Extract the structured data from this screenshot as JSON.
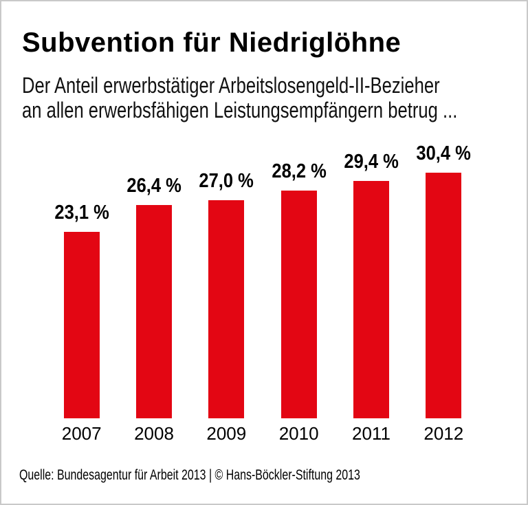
{
  "header": {
    "title": "Subvention für Niedriglöhne",
    "subtitle_line1": "Der Anteil erwerbstätiger Arbeitslosengeld-II-Bezieher",
    "subtitle_line2": "an allen erwerbsfähigen Leistungsempfängern betrug ..."
  },
  "footer": {
    "source": "Quelle: Bundesagentur für Arbeit 2013 | © Hans-Böckler-Stiftung 2013"
  },
  "colors": {
    "bar": "#e30613",
    "text": "#000000",
    "frame_border": "#c9c9c9"
  },
  "chart_data": {
    "type": "bar",
    "categories": [
      "2007",
      "2008",
      "2009",
      "2010",
      "2011",
      "2012"
    ],
    "values": [
      23.1,
      26.4,
      27.0,
      28.2,
      29.4,
      30.4
    ],
    "value_labels": [
      "23,1 %",
      "26,4 %",
      "27,0 %",
      "28,2 %",
      "29,4 %",
      "30,4 %"
    ],
    "unit": "%",
    "title": "Subvention für Niedriglöhne",
    "subtitle": "Der Anteil erwerbstätiger Arbeitslosengeld-II-Bezieher an allen erwerbsfähigen Leistungsempfängern betrug ...",
    "xlabel": "",
    "ylabel": "",
    "ylim": [
      0,
      34.6
    ],
    "grid": false,
    "legend": false,
    "bar_color": "#e30613",
    "value_label_position": "above-bar",
    "source": "Quelle: Bundesagentur für Arbeit 2013 | © Hans-Böckler-Stiftung 2013"
  }
}
